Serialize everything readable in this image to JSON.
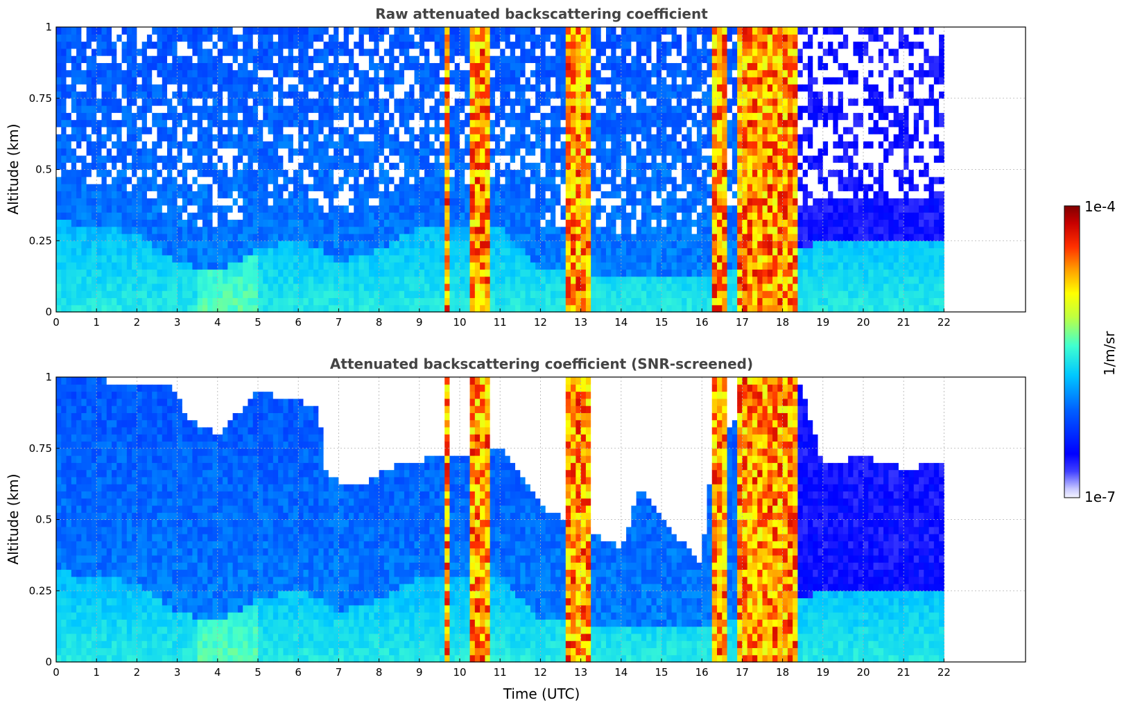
{
  "chart_data": [
    {
      "type": "heatmap",
      "title": "Raw attenuated backscattering coefficient",
      "xlabel": "",
      "ylabel": "Altitude (km)",
      "x_ticks": [
        "0",
        "1",
        "2",
        "3",
        "4",
        "5",
        "6",
        "7",
        "8",
        "9",
        "10",
        "11",
        "12",
        "13",
        "14",
        "15",
        "16",
        "17",
        "18",
        "19",
        "20",
        "21",
        "22"
      ],
      "y_ticks": [
        "0",
        "0.25",
        "0.5",
        "0.75",
        "1"
      ],
      "xlim": [
        0,
        24
      ],
      "ylim": [
        0,
        1
      ],
      "data_xlim": [
        0,
        22
      ],
      "grid": true,
      "screened": false,
      "rain_periods": [
        [
          9.6,
          9.75
        ],
        [
          10.25,
          10.7
        ],
        [
          12.65,
          13.25
        ],
        [
          16.3,
          16.6
        ],
        [
          16.85,
          17.7
        ],
        [
          17.7,
          18.4
        ]
      ],
      "boundary_layer_top_km": [
        [
          0,
          0.32
        ],
        [
          1,
          0.3
        ],
        [
          2,
          0.28
        ],
        [
          3,
          0.18
        ],
        [
          4,
          0.14
        ],
        [
          5,
          0.22
        ],
        [
          6,
          0.26
        ],
        [
          7,
          0.18
        ],
        [
          8,
          0.22
        ],
        [
          9,
          0.3
        ],
        [
          11,
          0.3
        ],
        [
          12,
          0.15
        ],
        [
          14,
          0.12
        ],
        [
          16,
          0.12
        ],
        [
          19,
          0.25
        ],
        [
          22,
          0.25
        ]
      ]
    },
    {
      "type": "heatmap",
      "title": "Attenuated backscattering coefficient (SNR-screened)",
      "xlabel": "Time (UTC)",
      "ylabel": "Altitude (km)",
      "x_ticks": [
        "0",
        "1",
        "2",
        "3",
        "4",
        "5",
        "6",
        "7",
        "8",
        "9",
        "10",
        "11",
        "12",
        "13",
        "14",
        "15",
        "16",
        "17",
        "18",
        "19",
        "20",
        "21",
        "22"
      ],
      "y_ticks": [
        "0",
        "0.25",
        "0.5",
        "0.75",
        "1"
      ],
      "xlim": [
        0,
        24
      ],
      "ylim": [
        0,
        1
      ],
      "data_xlim": [
        0,
        22
      ],
      "grid": true,
      "screened": true,
      "signal_top_km": [
        [
          0,
          1.0
        ],
        [
          2.9,
          0.97
        ],
        [
          3.3,
          0.85
        ],
        [
          4,
          0.8
        ],
        [
          5,
          0.95
        ],
        [
          6.5,
          0.9
        ],
        [
          6.7,
          0.65
        ],
        [
          7.5,
          0.62
        ],
        [
          8.5,
          0.7
        ],
        [
          9.5,
          0.72
        ],
        [
          11,
          0.75
        ],
        [
          12,
          0.55
        ],
        [
          12.6,
          0.5
        ],
        [
          13.3,
          0.45
        ],
        [
          14.0,
          0.4
        ],
        [
          14.5,
          0.62
        ],
        [
          15.3,
          0.45
        ],
        [
          16.0,
          0.35
        ],
        [
          16.3,
          0.8
        ],
        [
          18.4,
          1.0
        ],
        [
          19,
          0.7
        ],
        [
          20,
          0.72
        ],
        [
          21,
          0.68
        ],
        [
          22,
          0.7
        ]
      ]
    }
  ],
  "colorbar": {
    "label": "1/m/sr",
    "max_label": "1e-4",
    "min_label": "1e-7",
    "scale": "log",
    "range": [
      1e-07,
      0.0001
    ],
    "colormap": "jet"
  }
}
